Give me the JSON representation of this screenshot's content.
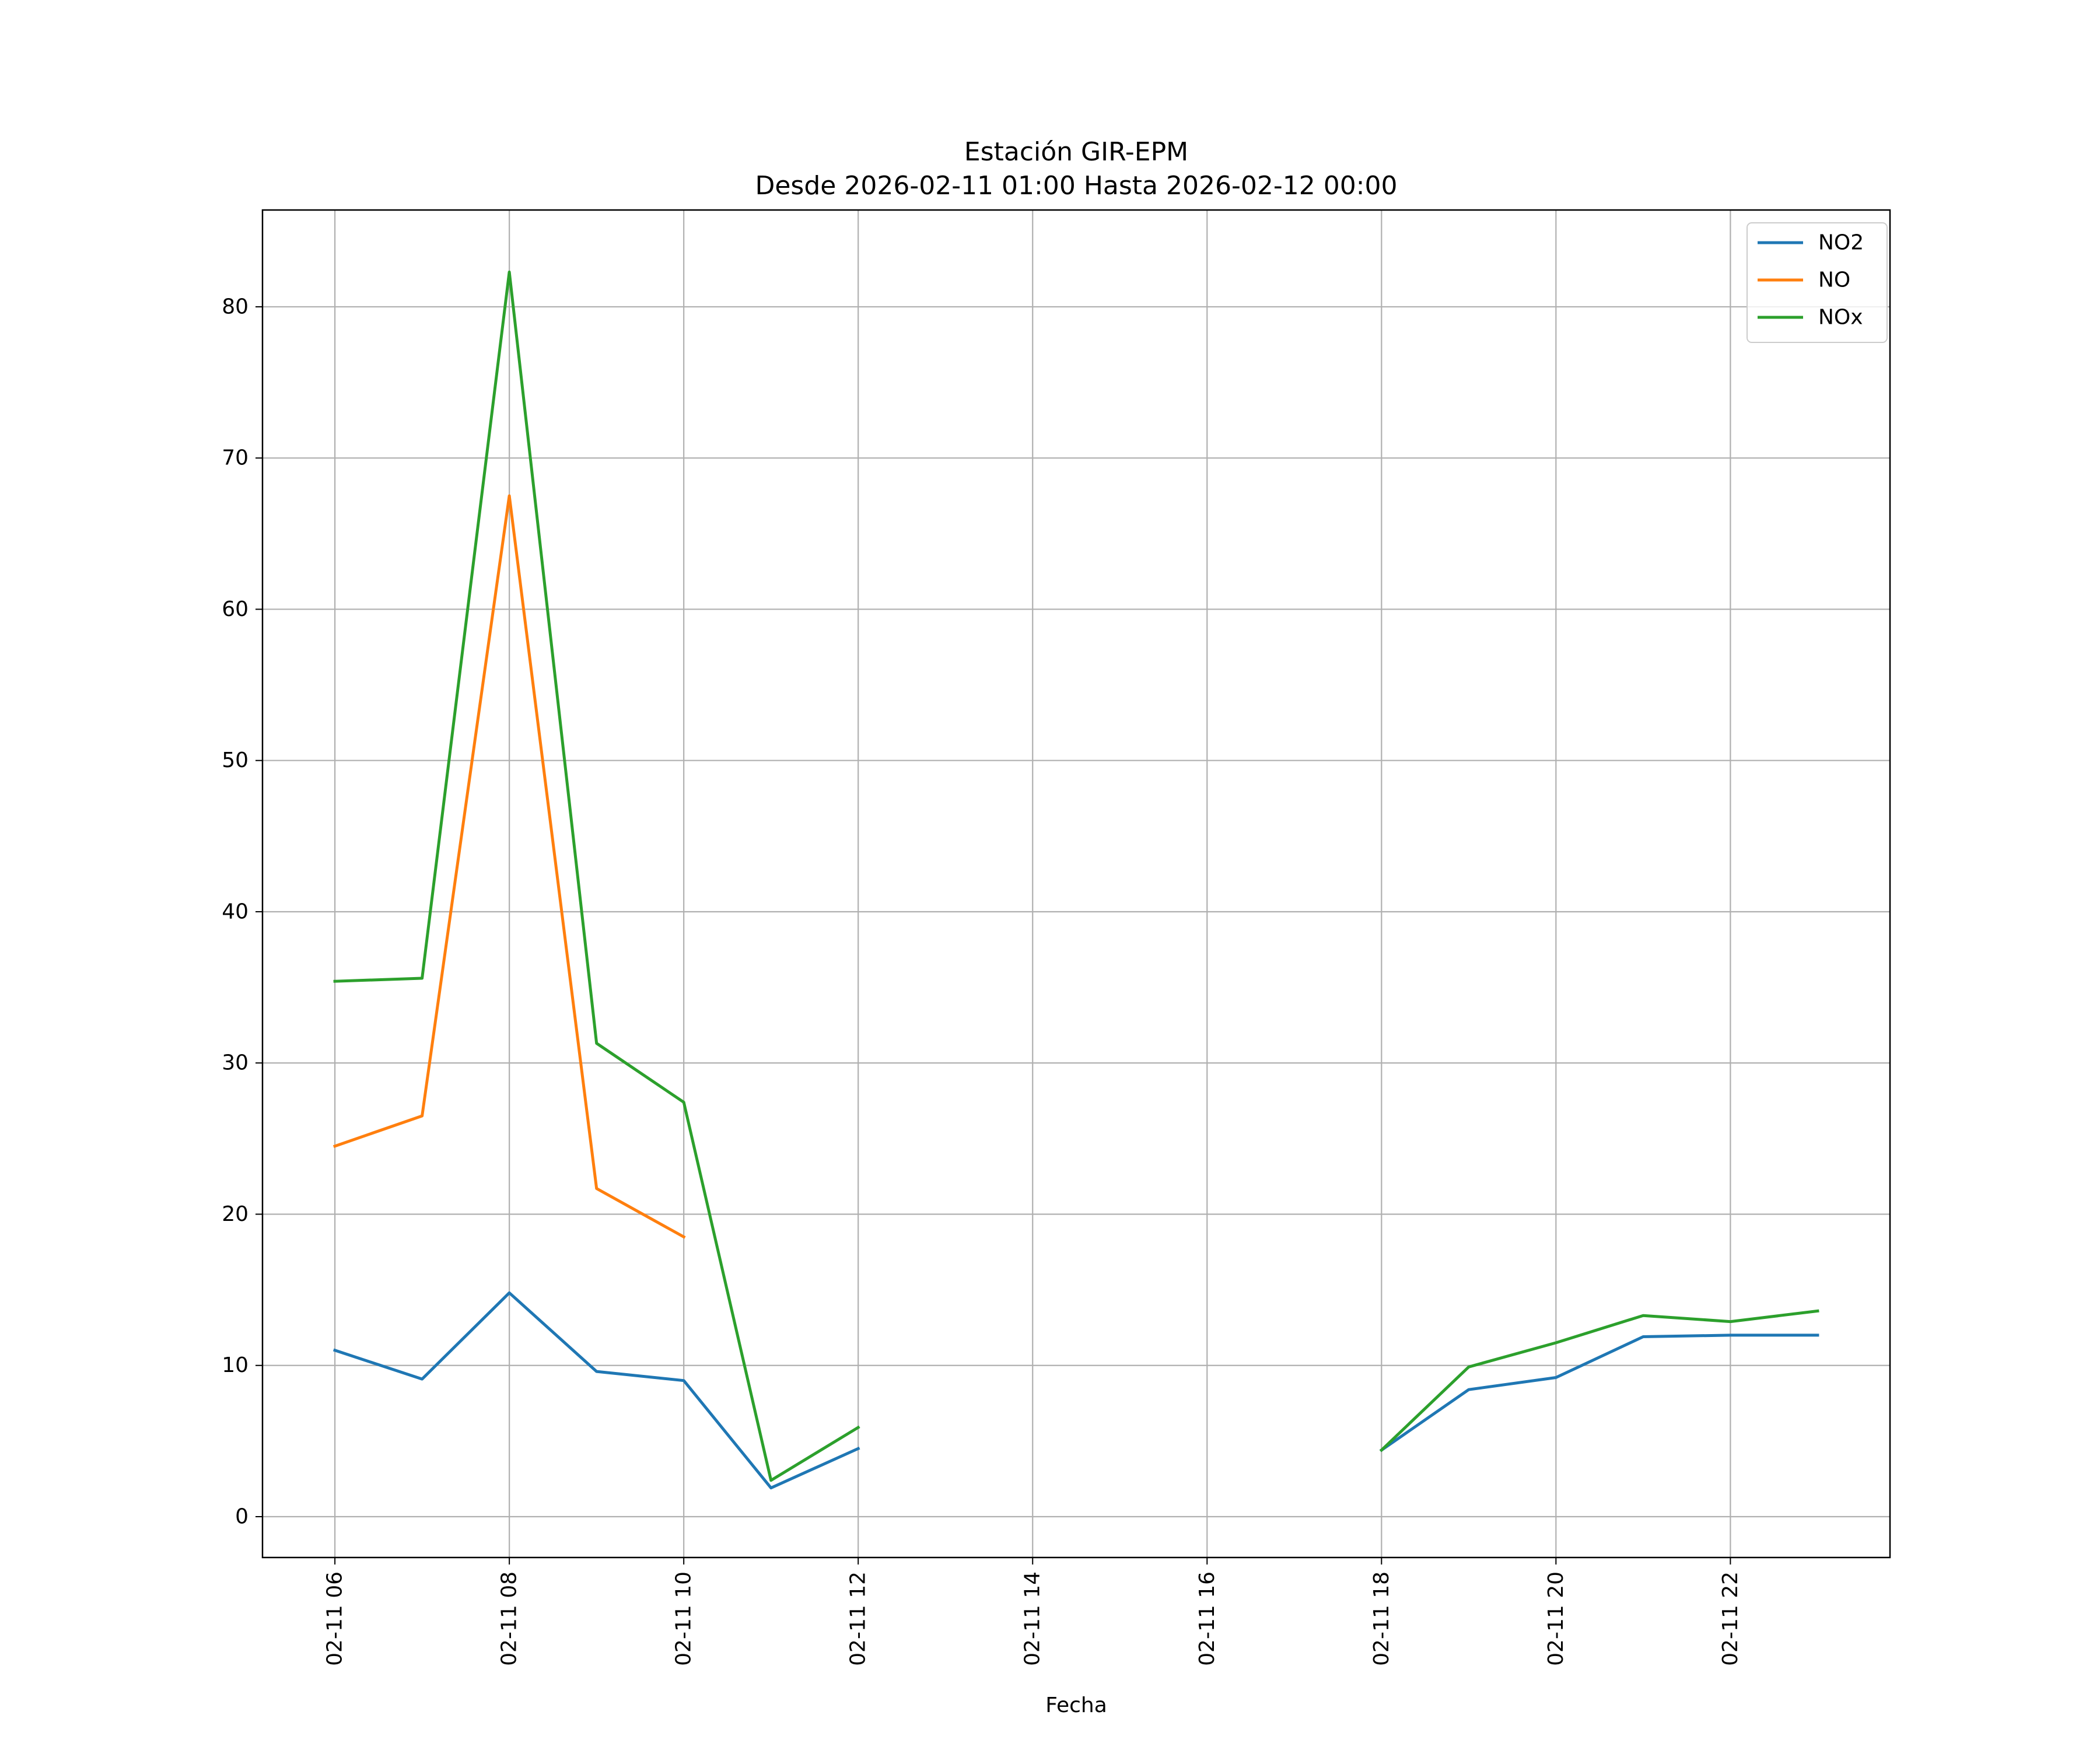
{
  "chart_data": {
    "type": "line",
    "title": "Estación GIR-EPM",
    "subtitle": "Desde 2026-02-11 01:00 Hasta 2026-02-12 00:00",
    "xlabel": "Fecha",
    "ylabel": "",
    "x_ticks": [
      "02-11 06",
      "02-11 08",
      "02-11 10",
      "02-11 12",
      "02-11 14",
      "02-11 16",
      "02-11 18",
      "02-11 20",
      "02-11 22"
    ],
    "x_tick_hours": [
      6,
      8,
      10,
      12,
      14,
      16,
      18,
      20,
      22
    ],
    "xlim": [
      5.17,
      23.83
    ],
    "y_ticks": [
      0,
      10,
      20,
      30,
      40,
      50,
      60,
      70,
      80
    ],
    "ylim": [
      -2.7,
      86.4
    ],
    "grid": true,
    "legend_position": "top-right",
    "x": [
      "2026-02-11 06:00",
      "2026-02-11 07:00",
      "2026-02-11 08:00",
      "2026-02-11 09:00",
      "2026-02-11 10:00",
      "2026-02-11 11:00",
      "2026-02-11 12:00",
      "2026-02-11 13:00",
      "2026-02-11 14:00",
      "2026-02-11 15:00",
      "2026-02-11 16:00",
      "2026-02-11 17:00",
      "2026-02-11 18:00",
      "2026-02-11 19:00",
      "2026-02-11 20:00",
      "2026-02-11 21:00",
      "2026-02-11 22:00",
      "2026-02-11 23:00"
    ],
    "series": [
      {
        "name": "NO2",
        "color": "#1f77b4",
        "values": [
          11.0,
          9.1,
          14.8,
          9.6,
          9.0,
          1.9,
          4.5,
          null,
          null,
          null,
          null,
          null,
          4.4,
          8.4,
          9.2,
          11.9,
          12.0,
          12.0
        ]
      },
      {
        "name": "NO",
        "color": "#ff7f0e",
        "values": [
          24.5,
          26.5,
          67.5,
          21.7,
          18.5,
          null,
          null,
          null,
          null,
          null,
          null,
          null,
          null,
          null,
          null,
          null,
          null,
          null
        ]
      },
      {
        "name": "NOx",
        "color": "#2ca02c",
        "values": [
          35.4,
          35.6,
          82.3,
          31.3,
          27.4,
          2.4,
          5.9,
          null,
          null,
          null,
          null,
          null,
          4.4,
          9.9,
          11.5,
          13.3,
          12.9,
          13.6
        ]
      }
    ]
  }
}
